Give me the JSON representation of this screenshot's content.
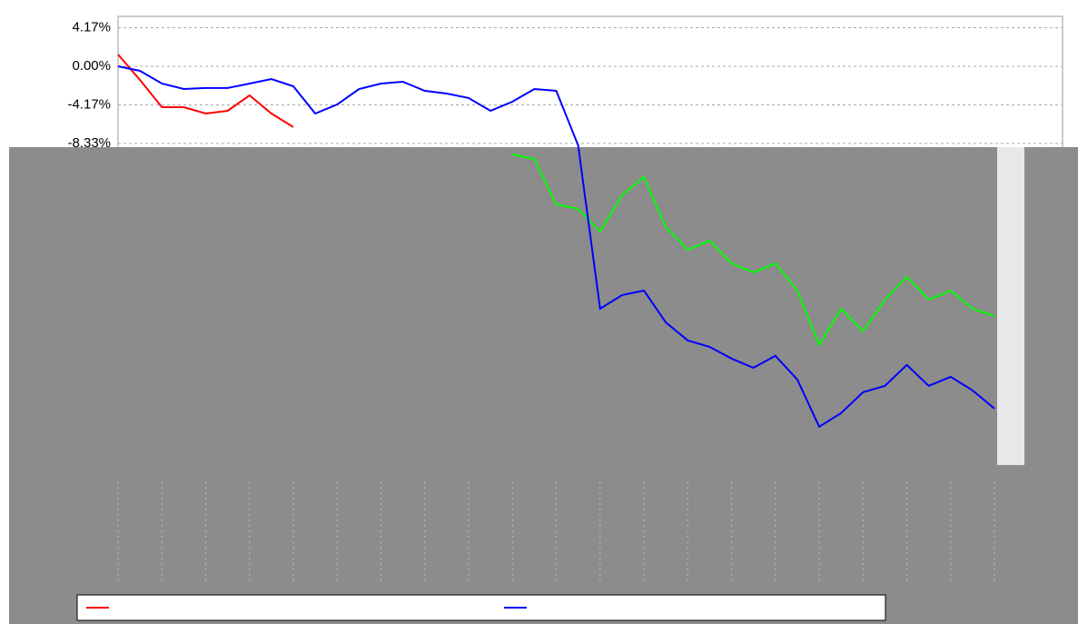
{
  "chart_data": {
    "type": "line",
    "categories": [
      null,
      null,
      null,
      null,
      null,
      null,
      null,
      null,
      null,
      null,
      null,
      null,
      null,
      null,
      null,
      null,
      null,
      null,
      null,
      null,
      null,
      null,
      null,
      null,
      null,
      null,
      null,
      null,
      null,
      null,
      null,
      null,
      null,
      null,
      null,
      null,
      null,
      null,
      null,
      null,
      null
    ],
    "series": [
      {
        "color": "#ff0000",
        "values": [
          1.28,
          -1.47,
          -4.42,
          -4.42,
          -5.1,
          -4.81,
          -3.14,
          -5.1,
          -6.57,
          null,
          null,
          null,
          null,
          null,
          null,
          null,
          null,
          null,
          null,
          null,
          null,
          null,
          null,
          null,
          null,
          null,
          null,
          null,
          null,
          null,
          null,
          null,
          null,
          null,
          null,
          null,
          null,
          null,
          null,
          null,
          null
        ]
      },
      {
        "color": "#00ff00",
        "values": [
          null,
          null,
          null,
          null,
          null,
          null,
          null,
          null,
          null,
          null,
          null,
          null,
          null,
          null,
          null,
          null,
          null,
          null,
          -9.52,
          -10.01,
          -14.92,
          -15.4,
          -17.86,
          -13.93,
          -11.97,
          -17.37,
          -19.82,
          -18.84,
          -21.29,
          -22.27,
          -21.29,
          -24.24,
          -30.12,
          -26.2,
          -28.65,
          -25.22,
          -22.76,
          -25.22,
          -24.24,
          -26.2,
          -26.98
        ]
      },
      {
        "color": "#0000ff",
        "values": [
          0,
          -0.49,
          -1.86,
          -2.45,
          -2.35,
          -2.35,
          -1.86,
          -1.37,
          -2.16,
          -5.1,
          -4.12,
          -2.45,
          -1.86,
          -1.67,
          -2.65,
          -2.94,
          -3.43,
          -4.81,
          -3.82,
          -2.45,
          -2.65,
          -8.54,
          -26.2,
          -24.73,
          -24.24,
          -27.67,
          -29.63,
          -30.32,
          -31.59,
          -32.58,
          -31.3,
          -33.85,
          -38.95,
          -37.48,
          -35.22,
          -34.54,
          -32.28,
          -34.54,
          -33.56,
          -35.03,
          -36.99
        ]
      }
    ],
    "ylim": [
      -42.9,
      5.4
    ],
    "yticks": [
      {
        "value": 4.17,
        "label": "4.17%"
      },
      {
        "value": 0,
        "label": "0.00%"
      },
      {
        "value": -4.17,
        "label": "-4.17%"
      },
      {
        "value": -8.33,
        "label": "-8.33%"
      }
    ],
    "grid": true
  }
}
